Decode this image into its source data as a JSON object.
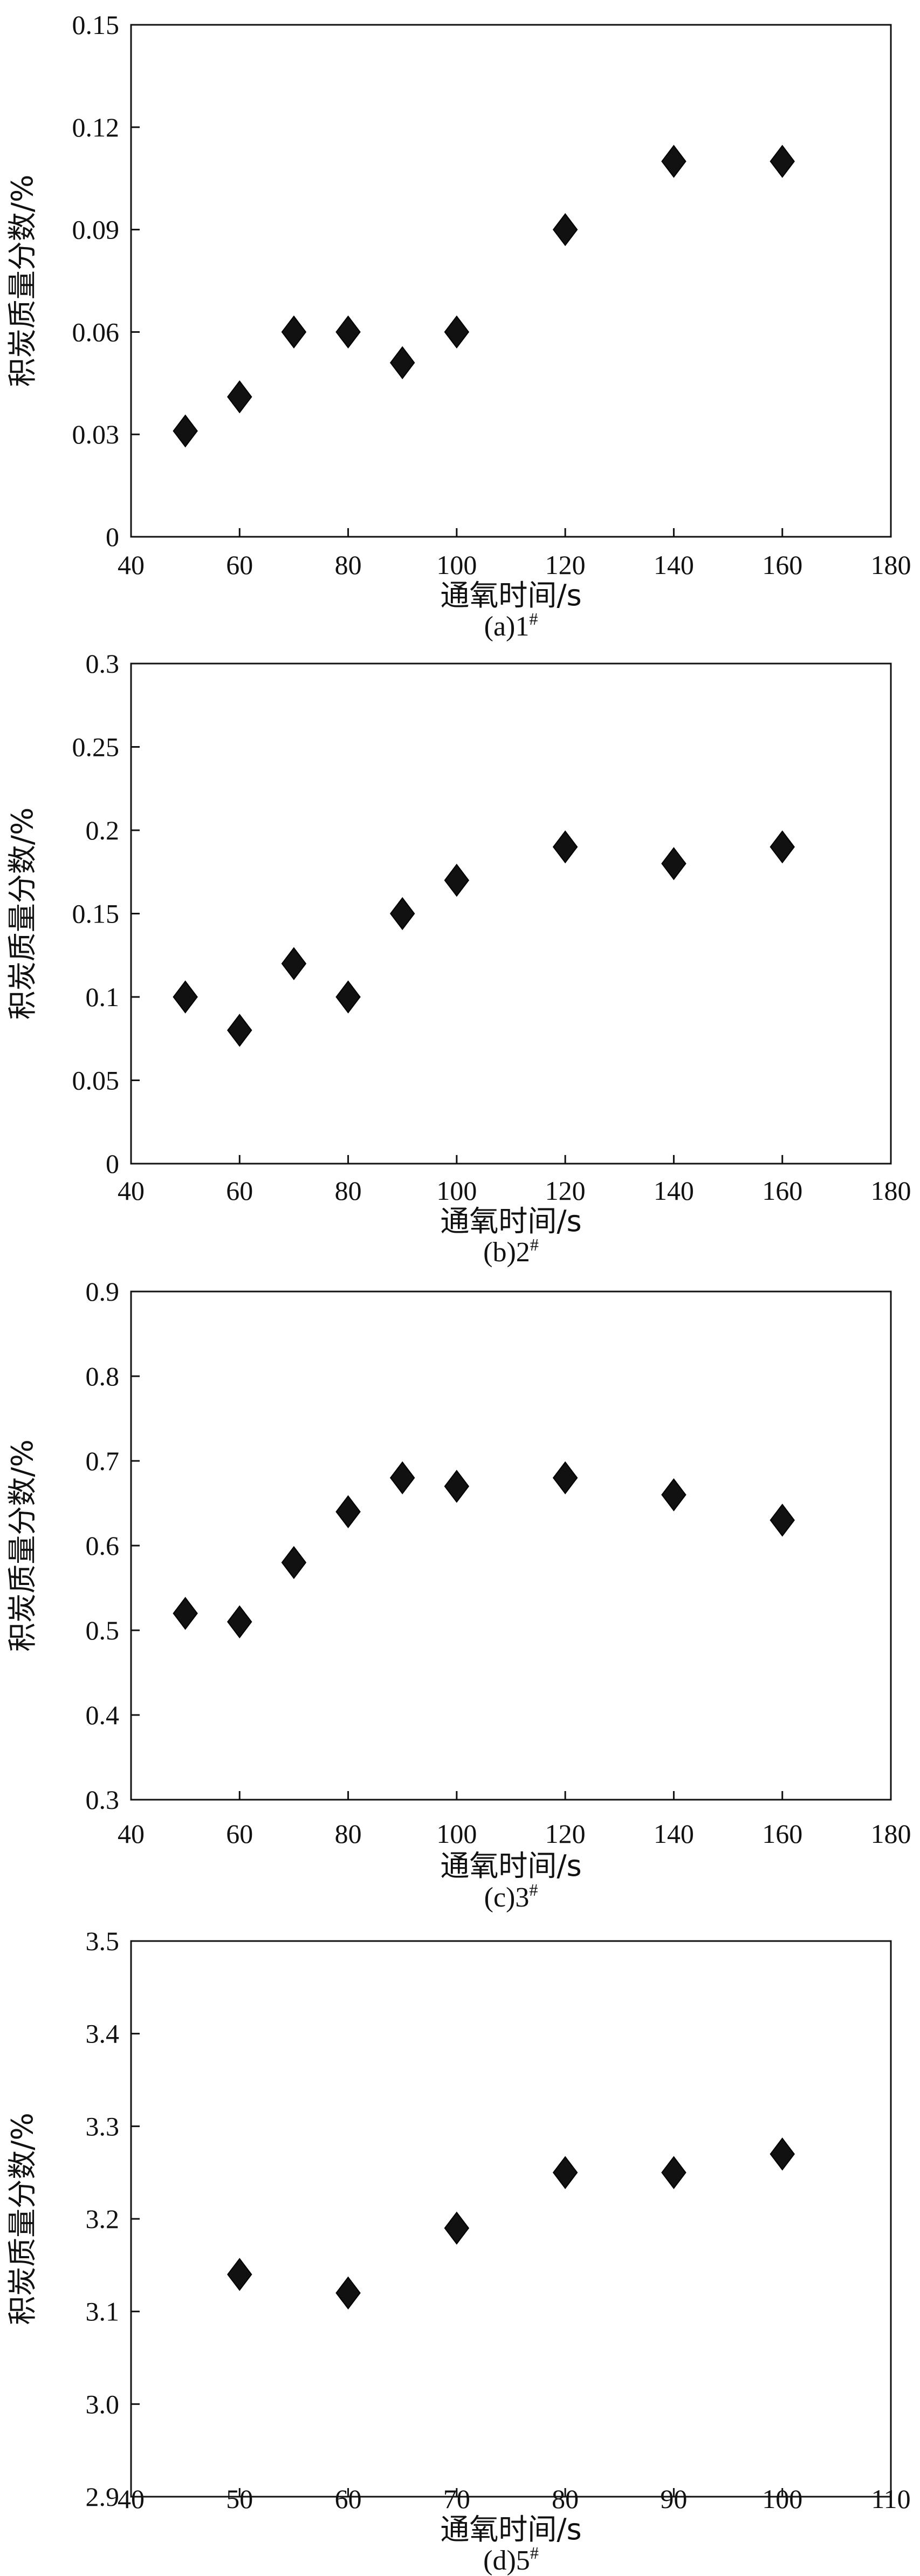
{
  "chart_data": [
    {
      "type": "scatter",
      "caption": "(a)1#",
      "xlabel": "通氧时间/s",
      "ylabel": "积炭质量分数/%",
      "xlim": [
        40,
        180
      ],
      "ylim": [
        0,
        0.15
      ],
      "xticks": [
        40,
        60,
        80,
        100,
        120,
        140,
        160,
        180
      ],
      "yticks": [
        0,
        0.03,
        0.06,
        0.09,
        0.12,
        0.15
      ],
      "ytick_labels": [
        "0",
        "0.03",
        "0.06",
        "0.09",
        "0.12",
        "0.15"
      ],
      "marker": "diamond",
      "series": [
        {
          "x": [
            50,
            60,
            70,
            80,
            90,
            100,
            120,
            140,
            160
          ],
          "y": [
            0.031,
            0.041,
            0.06,
            0.06,
            0.051,
            0.06,
            0.09,
            0.11,
            0.11
          ]
        }
      ]
    },
    {
      "type": "scatter",
      "caption": "(b)2#",
      "xlabel": "通氧时间/s",
      "ylabel": "积炭质量分数/%",
      "xlim": [
        40,
        180
      ],
      "ylim": [
        0,
        0.3
      ],
      "xticks": [
        40,
        60,
        80,
        100,
        120,
        140,
        160,
        180
      ],
      "yticks": [
        0,
        0.05,
        0.1,
        0.15,
        0.2,
        0.25,
        0.3
      ],
      "ytick_labels": [
        "0",
        "0.05",
        "0.1",
        "0.15",
        "0.2",
        "0.25",
        "0.3"
      ],
      "marker": "diamond",
      "series": [
        {
          "x": [
            50,
            60,
            70,
            80,
            90,
            100,
            120,
            140,
            160
          ],
          "y": [
            0.1,
            0.08,
            0.12,
            0.1,
            0.15,
            0.17,
            0.19,
            0.18,
            0.19
          ]
        }
      ]
    },
    {
      "type": "scatter",
      "caption": "(c)3#",
      "xlabel": "通氧时间/s",
      "ylabel": "积炭质量分数/%",
      "xlim": [
        40,
        180
      ],
      "ylim": [
        0.3,
        0.9
      ],
      "xticks": [
        40,
        60,
        80,
        100,
        120,
        140,
        160,
        180
      ],
      "yticks": [
        0.3,
        0.4,
        0.5,
        0.6,
        0.7,
        0.8,
        0.9
      ],
      "ytick_labels": [
        "0.3",
        "0.4",
        "0.5",
        "0.6",
        "0.7",
        "0.8",
        "0.9"
      ],
      "marker": "diamond",
      "series": [
        {
          "x": [
            50,
            60,
            70,
            80,
            90,
            100,
            120,
            140,
            160
          ],
          "y": [
            0.52,
            0.51,
            0.58,
            0.64,
            0.68,
            0.67,
            0.68,
            0.66,
            0.63
          ]
        }
      ]
    },
    {
      "type": "scatter",
      "caption": "(d)5#",
      "xlabel": "通氧时间/s",
      "ylabel": "积炭质量分数/%",
      "xlim": [
        40,
        110
      ],
      "ylim": [
        2.9,
        3.5
      ],
      "xticks": [
        40,
        50,
        60,
        70,
        80,
        90,
        100,
        110
      ],
      "yticks": [
        2.9,
        3.0,
        3.1,
        3.2,
        3.3,
        3.4,
        3.5
      ],
      "ytick_labels": [
        "2.9",
        "3.0",
        "3.1",
        "3.2",
        "3.3",
        "3.4",
        "3.5"
      ],
      "marker": "diamond",
      "series": [
        {
          "x": [
            50,
            60,
            70,
            80,
            90,
            100
          ],
          "y": [
            3.14,
            3.12,
            3.19,
            3.25,
            3.25,
            3.27
          ]
        }
      ]
    }
  ]
}
